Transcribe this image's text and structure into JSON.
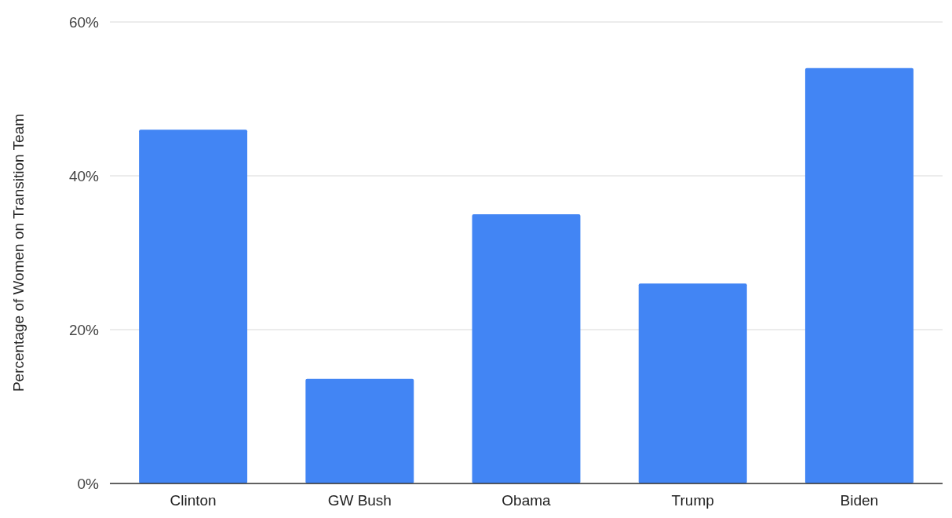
{
  "chart_data": {
    "type": "bar",
    "ylabel": "Percentage of Women on Transition Team",
    "categories": [
      "Clinton",
      "GW Bush",
      "Obama",
      "Trump",
      "Biden"
    ],
    "values": [
      46,
      13.6,
      35,
      26,
      54
    ],
    "color": "#4285f4",
    "ylim": [
      0,
      60
    ],
    "yticks": [
      {
        "value": 0,
        "label": "0%"
      },
      {
        "value": 20,
        "label": "20%"
      },
      {
        "value": 40,
        "label": "40%"
      },
      {
        "value": 60,
        "label": "60%"
      }
    ],
    "grid": "y"
  }
}
